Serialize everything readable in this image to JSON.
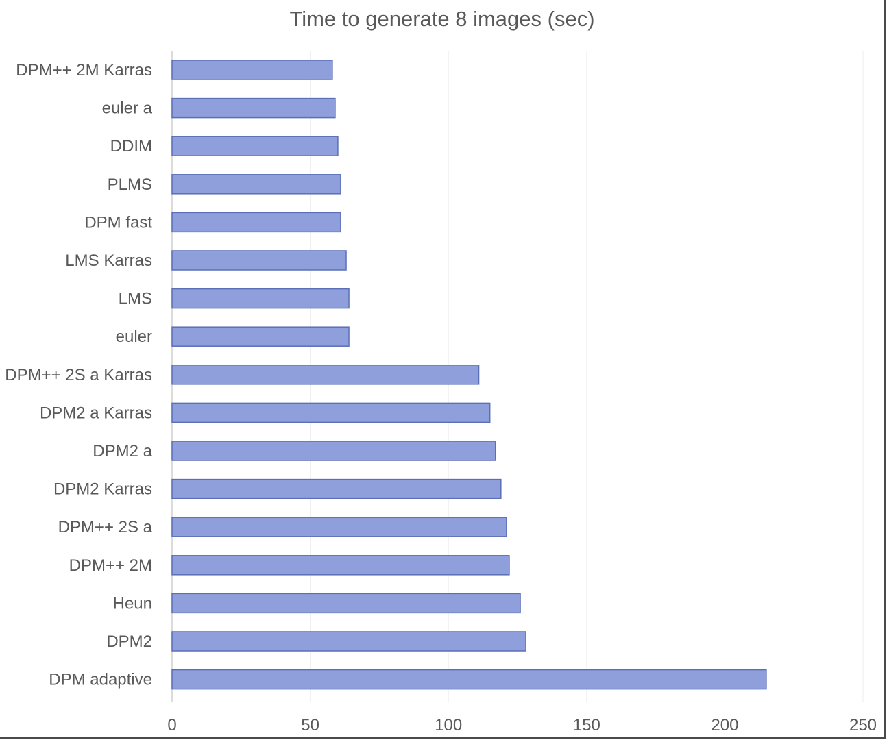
{
  "chart_data": {
    "type": "bar",
    "orientation": "horizontal",
    "title": "Time to generate 8 images (sec)",
    "xlabel": "",
    "ylabel": "",
    "categories": [
      "DPM++ 2M Karras",
      "euler a",
      "DDIM",
      "PLMS",
      "DPM fast",
      "LMS Karras",
      "LMS",
      "euler",
      "DPM++ 2S a Karras",
      "DPM2 a Karras",
      "DPM2 a",
      "DPM2 Karras",
      "DPM++ 2S a",
      "DPM++ 2M",
      "Heun",
      "DPM2",
      "DPM adaptive"
    ],
    "values": [
      58,
      59,
      60,
      61,
      61,
      63,
      64,
      64,
      111,
      115,
      117,
      119,
      121,
      122,
      126,
      128,
      215
    ],
    "xlim": [
      0,
      250
    ],
    "xticks": [
      0,
      50,
      100,
      150,
      200,
      250
    ],
    "grid": true,
    "legend": "none",
    "bar_color": "#8e9fdb",
    "bar_edge_color": "#5b6fb8"
  }
}
